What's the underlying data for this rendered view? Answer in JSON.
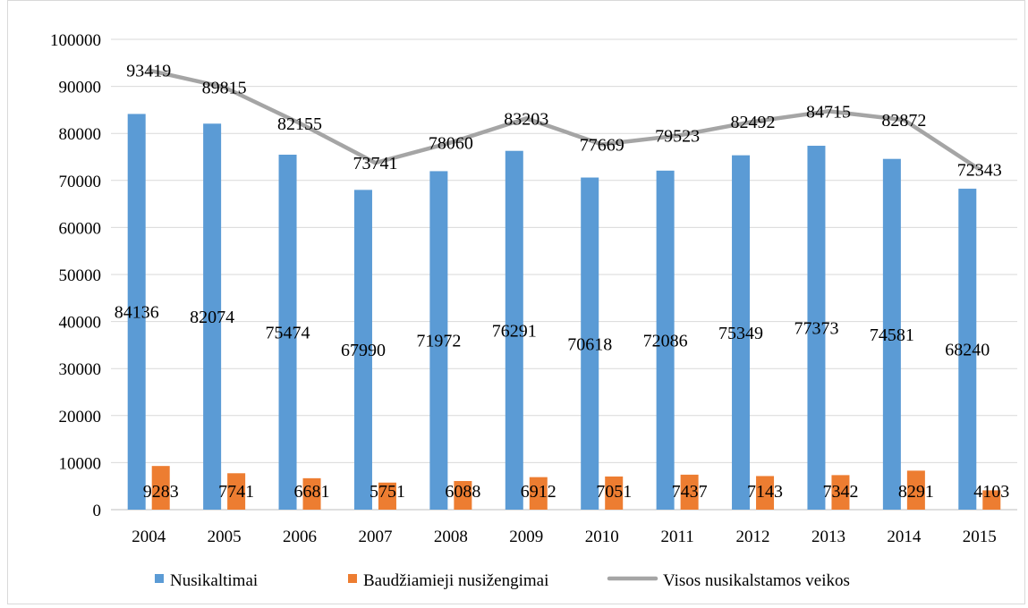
{
  "chart_data": {
    "type": "bar",
    "title": "",
    "xlabel": "",
    "ylabel": "",
    "categories": [
      "2004",
      "2005",
      "2006",
      "2007",
      "2008",
      "2009",
      "2010",
      "2011",
      "2012",
      "2013",
      "2014",
      "2015"
    ],
    "ylim": [
      0,
      100000
    ],
    "yticks": [
      0,
      10000,
      20000,
      30000,
      40000,
      50000,
      60000,
      70000,
      80000,
      90000,
      100000
    ],
    "grid": true,
    "legend_position": "bottom",
    "series": [
      {
        "name": "Nusikaltimai",
        "kind": "bar",
        "color": "#5b9bd5",
        "values": [
          84136,
          82074,
          75474,
          67990,
          71972,
          76291,
          70618,
          72086,
          75349,
          77373,
          74581,
          68240
        ]
      },
      {
        "name": "Baudžiamieji nusižengimai",
        "kind": "bar",
        "color": "#ed7d31",
        "values": [
          9283,
          7741,
          6681,
          5751,
          6088,
          6912,
          7051,
          7437,
          7143,
          7342,
          8291,
          4103
        ]
      },
      {
        "name": "Visos nusikalstamos veikos",
        "kind": "line",
        "color": "#a5a5a5",
        "values": [
          93419,
          89815,
          82155,
          73741,
          78060,
          83203,
          77669,
          79523,
          82492,
          84715,
          82872,
          72343
        ]
      }
    ]
  }
}
